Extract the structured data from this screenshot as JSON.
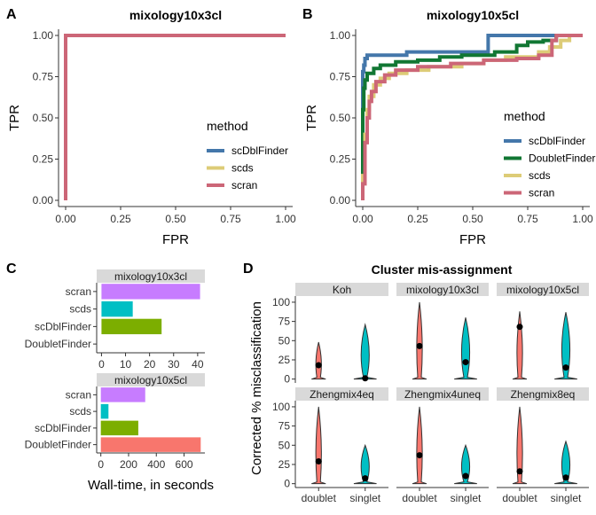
{
  "panel_labels": [
    "A",
    "B",
    "C",
    "D"
  ],
  "chart_data": [
    {
      "id": "A",
      "type": "line",
      "title": "mixology10x3cl",
      "xlabel": "FPR",
      "ylabel": "TPR",
      "xlim": [
        0,
        1
      ],
      "ylim": [
        0,
        1
      ],
      "xticks": [
        "0.00",
        "0.25",
        "0.50",
        "0.75",
        "1.00"
      ],
      "yticks": [
        "0.00",
        "0.25",
        "0.50",
        "0.75",
        "1.00"
      ],
      "legend_title": "method",
      "legend_position": "right",
      "series": [
        {
          "name": "scDblFinder",
          "color": "#4477AA",
          "points": [
            [
              0,
              0
            ],
            [
              0,
              1
            ],
            [
              1,
              1
            ]
          ]
        },
        {
          "name": "scds",
          "color": "#DDCC77",
          "points": [
            [
              0,
              0
            ],
            [
              0,
              1
            ],
            [
              1,
              1
            ]
          ]
        },
        {
          "name": "scran",
          "color": "#CC6677",
          "points": [
            [
              0,
              0
            ],
            [
              0,
              1
            ],
            [
              1,
              1
            ]
          ]
        }
      ]
    },
    {
      "id": "B",
      "type": "line",
      "title": "mixology10x5cl",
      "xlabel": "FPR",
      "ylabel": "TPR",
      "xlim": [
        0,
        1
      ],
      "ylim": [
        0,
        1
      ],
      "xticks": [
        "0.00",
        "0.25",
        "0.50",
        "0.75",
        "1.00"
      ],
      "yticks": [
        "0.00",
        "0.25",
        "0.50",
        "0.75",
        "1.00"
      ],
      "legend_title": "method",
      "legend_position": "right",
      "series": [
        {
          "name": "scDblFinder",
          "color": "#4477AA",
          "points": [
            [
              0,
              0
            ],
            [
              0,
              0.78
            ],
            [
              0.005,
              0.78
            ],
            [
              0.005,
              0.82
            ],
            [
              0.01,
              0.82
            ],
            [
              0.01,
              0.86
            ],
            [
              0.02,
              0.86
            ],
            [
              0.02,
              0.88
            ],
            [
              0.2,
              0.88
            ],
            [
              0.2,
              0.9
            ],
            [
              0.57,
              0.9
            ],
            [
              0.57,
              1
            ],
            [
              1,
              1
            ]
          ]
        },
        {
          "name": "DoubletFinder",
          "color": "#117733",
          "points": [
            [
              0,
              0
            ],
            [
              0,
              0.55
            ],
            [
              0.005,
              0.55
            ],
            [
              0.005,
              0.68
            ],
            [
              0.01,
              0.68
            ],
            [
              0.01,
              0.73
            ],
            [
              0.02,
              0.73
            ],
            [
              0.02,
              0.77
            ],
            [
              0.05,
              0.77
            ],
            [
              0.05,
              0.8
            ],
            [
              0.08,
              0.8
            ],
            [
              0.08,
              0.82
            ],
            [
              0.15,
              0.82
            ],
            [
              0.15,
              0.84
            ],
            [
              0.25,
              0.84
            ],
            [
              0.25,
              0.85
            ],
            [
              0.35,
              0.85
            ],
            [
              0.35,
              0.87
            ],
            [
              0.45,
              0.87
            ],
            [
              0.45,
              0.88
            ],
            [
              0.6,
              0.88
            ],
            [
              0.6,
              0.9
            ],
            [
              0.7,
              0.9
            ],
            [
              0.7,
              0.94
            ],
            [
              0.75,
              0.94
            ],
            [
              0.75,
              0.96
            ],
            [
              0.82,
              0.96
            ],
            [
              0.82,
              0.97
            ],
            [
              0.88,
              0.97
            ],
            [
              0.88,
              1
            ],
            [
              1,
              1
            ]
          ]
        },
        {
          "name": "scds",
          "color": "#DDCC77",
          "points": [
            [
              0,
              0
            ],
            [
              0,
              0.15
            ],
            [
              0.01,
              0.15
            ],
            [
              0.01,
              0.4
            ],
            [
              0.02,
              0.4
            ],
            [
              0.02,
              0.55
            ],
            [
              0.03,
              0.55
            ],
            [
              0.03,
              0.63
            ],
            [
              0.05,
              0.63
            ],
            [
              0.05,
              0.7
            ],
            [
              0.08,
              0.7
            ],
            [
              0.08,
              0.74
            ],
            [
              0.12,
              0.74
            ],
            [
              0.12,
              0.77
            ],
            [
              0.2,
              0.77
            ],
            [
              0.2,
              0.79
            ],
            [
              0.3,
              0.79
            ],
            [
              0.3,
              0.81
            ],
            [
              0.45,
              0.81
            ],
            [
              0.45,
              0.83
            ],
            [
              0.55,
              0.83
            ],
            [
              0.55,
              0.85
            ],
            [
              0.65,
              0.85
            ],
            [
              0.65,
              0.87
            ],
            [
              0.8,
              0.87
            ],
            [
              0.8,
              0.9
            ],
            [
              0.85,
              0.9
            ],
            [
              0.85,
              0.93
            ],
            [
              0.9,
              0.93
            ],
            [
              0.9,
              0.97
            ],
            [
              0.94,
              0.97
            ],
            [
              0.94,
              1
            ],
            [
              1,
              1
            ]
          ]
        },
        {
          "name": "scran",
          "color": "#CC6677",
          "points": [
            [
              0,
              0
            ],
            [
              0,
              0.1
            ],
            [
              0.01,
              0.1
            ],
            [
              0.01,
              0.35
            ],
            [
              0.02,
              0.35
            ],
            [
              0.02,
              0.5
            ],
            [
              0.03,
              0.5
            ],
            [
              0.03,
              0.6
            ],
            [
              0.04,
              0.6
            ],
            [
              0.04,
              0.66
            ],
            [
              0.06,
              0.66
            ],
            [
              0.06,
              0.72
            ],
            [
              0.1,
              0.72
            ],
            [
              0.1,
              0.76
            ],
            [
              0.15,
              0.76
            ],
            [
              0.15,
              0.79
            ],
            [
              0.25,
              0.79
            ],
            [
              0.25,
              0.81
            ],
            [
              0.4,
              0.81
            ],
            [
              0.4,
              0.83
            ],
            [
              0.55,
              0.83
            ],
            [
              0.55,
              0.85
            ],
            [
              0.7,
              0.85
            ],
            [
              0.7,
              0.86
            ],
            [
              0.8,
              0.86
            ],
            [
              0.8,
              0.88
            ],
            [
              0.86,
              0.88
            ],
            [
              0.86,
              0.97
            ],
            [
              0.88,
              0.97
            ],
            [
              0.88,
              1
            ],
            [
              1,
              1
            ]
          ]
        }
      ]
    },
    {
      "id": "C",
      "type": "bar",
      "orientation": "horizontal",
      "xlabel": "Wall-time, in seconds",
      "facets": [
        {
          "title": "mixology10x3cl",
          "categories": [
            "scran",
            "scds",
            "scDblFinder",
            "DoubletFinder"
          ],
          "values": [
            41,
            13,
            25,
            null
          ],
          "colors": [
            "#C77CFF",
            "#00BFC4",
            "#7CAE00",
            "#F8766D"
          ],
          "xlim": [
            -2,
            43
          ],
          "xticks": [
            0,
            10,
            20,
            30,
            40
          ]
        },
        {
          "title": "mixology10x5cl",
          "categories": [
            "scran",
            "scds",
            "scDblFinder",
            "DoubletFinder"
          ],
          "values": [
            320,
            55,
            270,
            720
          ],
          "colors": [
            "#C77CFF",
            "#00BFC4",
            "#7CAE00",
            "#F8766D"
          ],
          "xlim": [
            -30,
            750
          ],
          "xticks": [
            0,
            200,
            400,
            600
          ]
        }
      ]
    },
    {
      "id": "D",
      "type": "violin",
      "title": "Cluster mis-assignment",
      "ylabel": "Corrected % misclassification",
      "categories": [
        "doublet",
        "singlet"
      ],
      "colors": {
        "doublet": "#F8766D",
        "singlet": "#00BFC4"
      },
      "ylim": [
        -5,
        108
      ],
      "yticks": [
        0,
        25,
        50,
        75,
        100
      ],
      "facets": [
        {
          "title": "Koh",
          "doublet": {
            "mean": 18,
            "min": 0,
            "max": 48
          },
          "singlet": {
            "mean": 1,
            "min": 0,
            "max": 71
          }
        },
        {
          "title": "mixology10x3cl",
          "doublet": {
            "mean": 43,
            "min": 0,
            "max": 100
          },
          "singlet": {
            "mean": 22,
            "min": 0,
            "max": 80
          }
        },
        {
          "title": "mixology10x5cl",
          "doublet": {
            "mean": 68,
            "min": 0,
            "max": 88
          },
          "singlet": {
            "mean": 15,
            "min": 0,
            "max": 87
          }
        },
        {
          "title": "Zhengmix4eq",
          "doublet": {
            "mean": 29,
            "min": 0,
            "max": 100
          },
          "singlet": {
            "mean": 7,
            "min": 0,
            "max": 50
          }
        },
        {
          "title": "Zhengmix4uneq",
          "doublet": {
            "mean": 37,
            "min": 0,
            "max": 100
          },
          "singlet": {
            "mean": 10,
            "min": 0,
            "max": 50
          }
        },
        {
          "title": "Zhengmix8eq",
          "doublet": {
            "mean": 16,
            "min": 0,
            "max": 100
          },
          "singlet": {
            "mean": 8,
            "min": 0,
            "max": 55
          }
        }
      ]
    }
  ]
}
